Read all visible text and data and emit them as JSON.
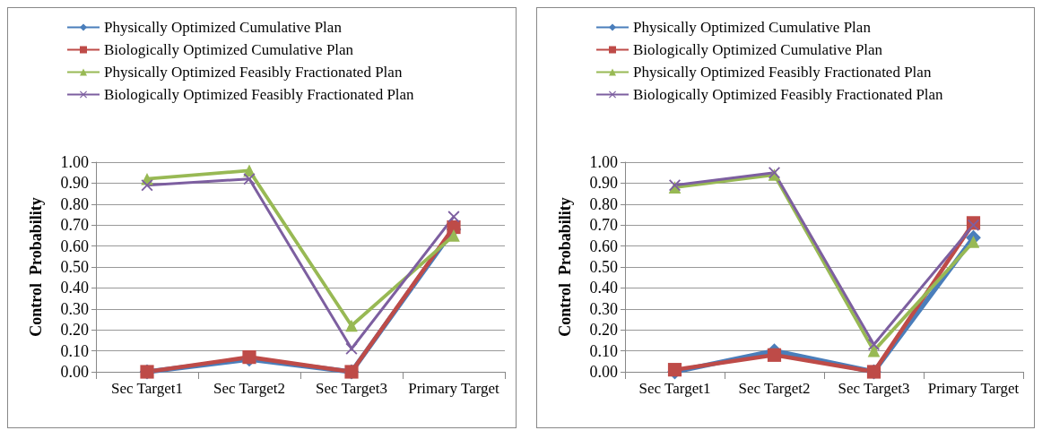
{
  "chart_data": [
    {
      "type": "line",
      "ylabel": "Control  Probability",
      "categories": [
        "Sec Target1",
        "Sec Target2",
        "Sec Target3",
        "Primary Target"
      ],
      "ylim": [
        0,
        1
      ],
      "yticks": [
        {
          "value": 0,
          "label": "0.00"
        },
        {
          "value": 0.1,
          "label": "0.10"
        },
        {
          "value": 0.2,
          "label": "0.20"
        },
        {
          "value": 0.3,
          "label": "0.30"
        },
        {
          "value": 0.4,
          "label": "0.40"
        },
        {
          "value": 0.5,
          "label": "0.50"
        },
        {
          "value": 0.6,
          "label": "0.60"
        },
        {
          "value": 0.7,
          "label": "0.70"
        },
        {
          "value": 0.8,
          "label": "0.80"
        },
        {
          "value": 0.9,
          "label": "0.90"
        },
        {
          "value": 1,
          "label": "1.00"
        }
      ],
      "grid": "y",
      "legend": "top",
      "series": [
        {
          "name": "Physically Optimized Cumulative Plan",
          "color": "#4a7ebb",
          "marker": "diamond",
          "values": [
            0,
            0.06,
            0,
            0.68
          ]
        },
        {
          "name": "Biologically Optimized Cumulative Plan",
          "color": "#be4b48",
          "marker": "square",
          "values": [
            0,
            0.07,
            0,
            0.69
          ]
        },
        {
          "name": "Physically Optimized Feasibly Fractionated Plan",
          "color": "#98b954",
          "marker": "triangle",
          "values": [
            0.92,
            0.96,
            0.22,
            0.65
          ]
        },
        {
          "name": "Biologically Optimized Feasibly Fractionated Plan",
          "color": "#7d5fa0",
          "marker": "cross",
          "values": [
            0.89,
            0.92,
            0.11,
            0.74
          ]
        }
      ]
    },
    {
      "type": "line",
      "ylabel": "Control  Probability",
      "categories": [
        "Sec Target1",
        "Sec Target2",
        "Sec Target3",
        "Primary Target"
      ],
      "ylim": [
        0,
        1
      ],
      "yticks": [
        {
          "value": 0,
          "label": "0.00"
        },
        {
          "value": 0.1,
          "label": "0.10"
        },
        {
          "value": 0.2,
          "label": "0.20"
        },
        {
          "value": 0.3,
          "label": "0.30"
        },
        {
          "value": 0.4,
          "label": "0.40"
        },
        {
          "value": 0.5,
          "label": "0.50"
        },
        {
          "value": 0.6,
          "label": "0.60"
        },
        {
          "value": 0.7,
          "label": "0.70"
        },
        {
          "value": 0.8,
          "label": "0.80"
        },
        {
          "value": 0.9,
          "label": "0.90"
        },
        {
          "value": 1,
          "label": "1.00"
        }
      ],
      "grid": "y",
      "legend": "top",
      "series": [
        {
          "name": "Physically Optimized Cumulative Plan",
          "color": "#4a7ebb",
          "marker": "diamond",
          "values": [
            0,
            0.1,
            0,
            0.64
          ]
        },
        {
          "name": "Biologically Optimized Cumulative Plan",
          "color": "#be4b48",
          "marker": "square",
          "values": [
            0.01,
            0.08,
            0,
            0.71
          ]
        },
        {
          "name": "Physically Optimized Feasibly Fractionated Plan",
          "color": "#98b954",
          "marker": "triangle",
          "values": [
            0.88,
            0.94,
            0.1,
            0.62
          ]
        },
        {
          "name": "Biologically Optimized Feasibly Fractionated Plan",
          "color": "#7d5fa0",
          "marker": "cross",
          "values": [
            0.89,
            0.95,
            0.13,
            0.7
          ]
        }
      ]
    }
  ]
}
